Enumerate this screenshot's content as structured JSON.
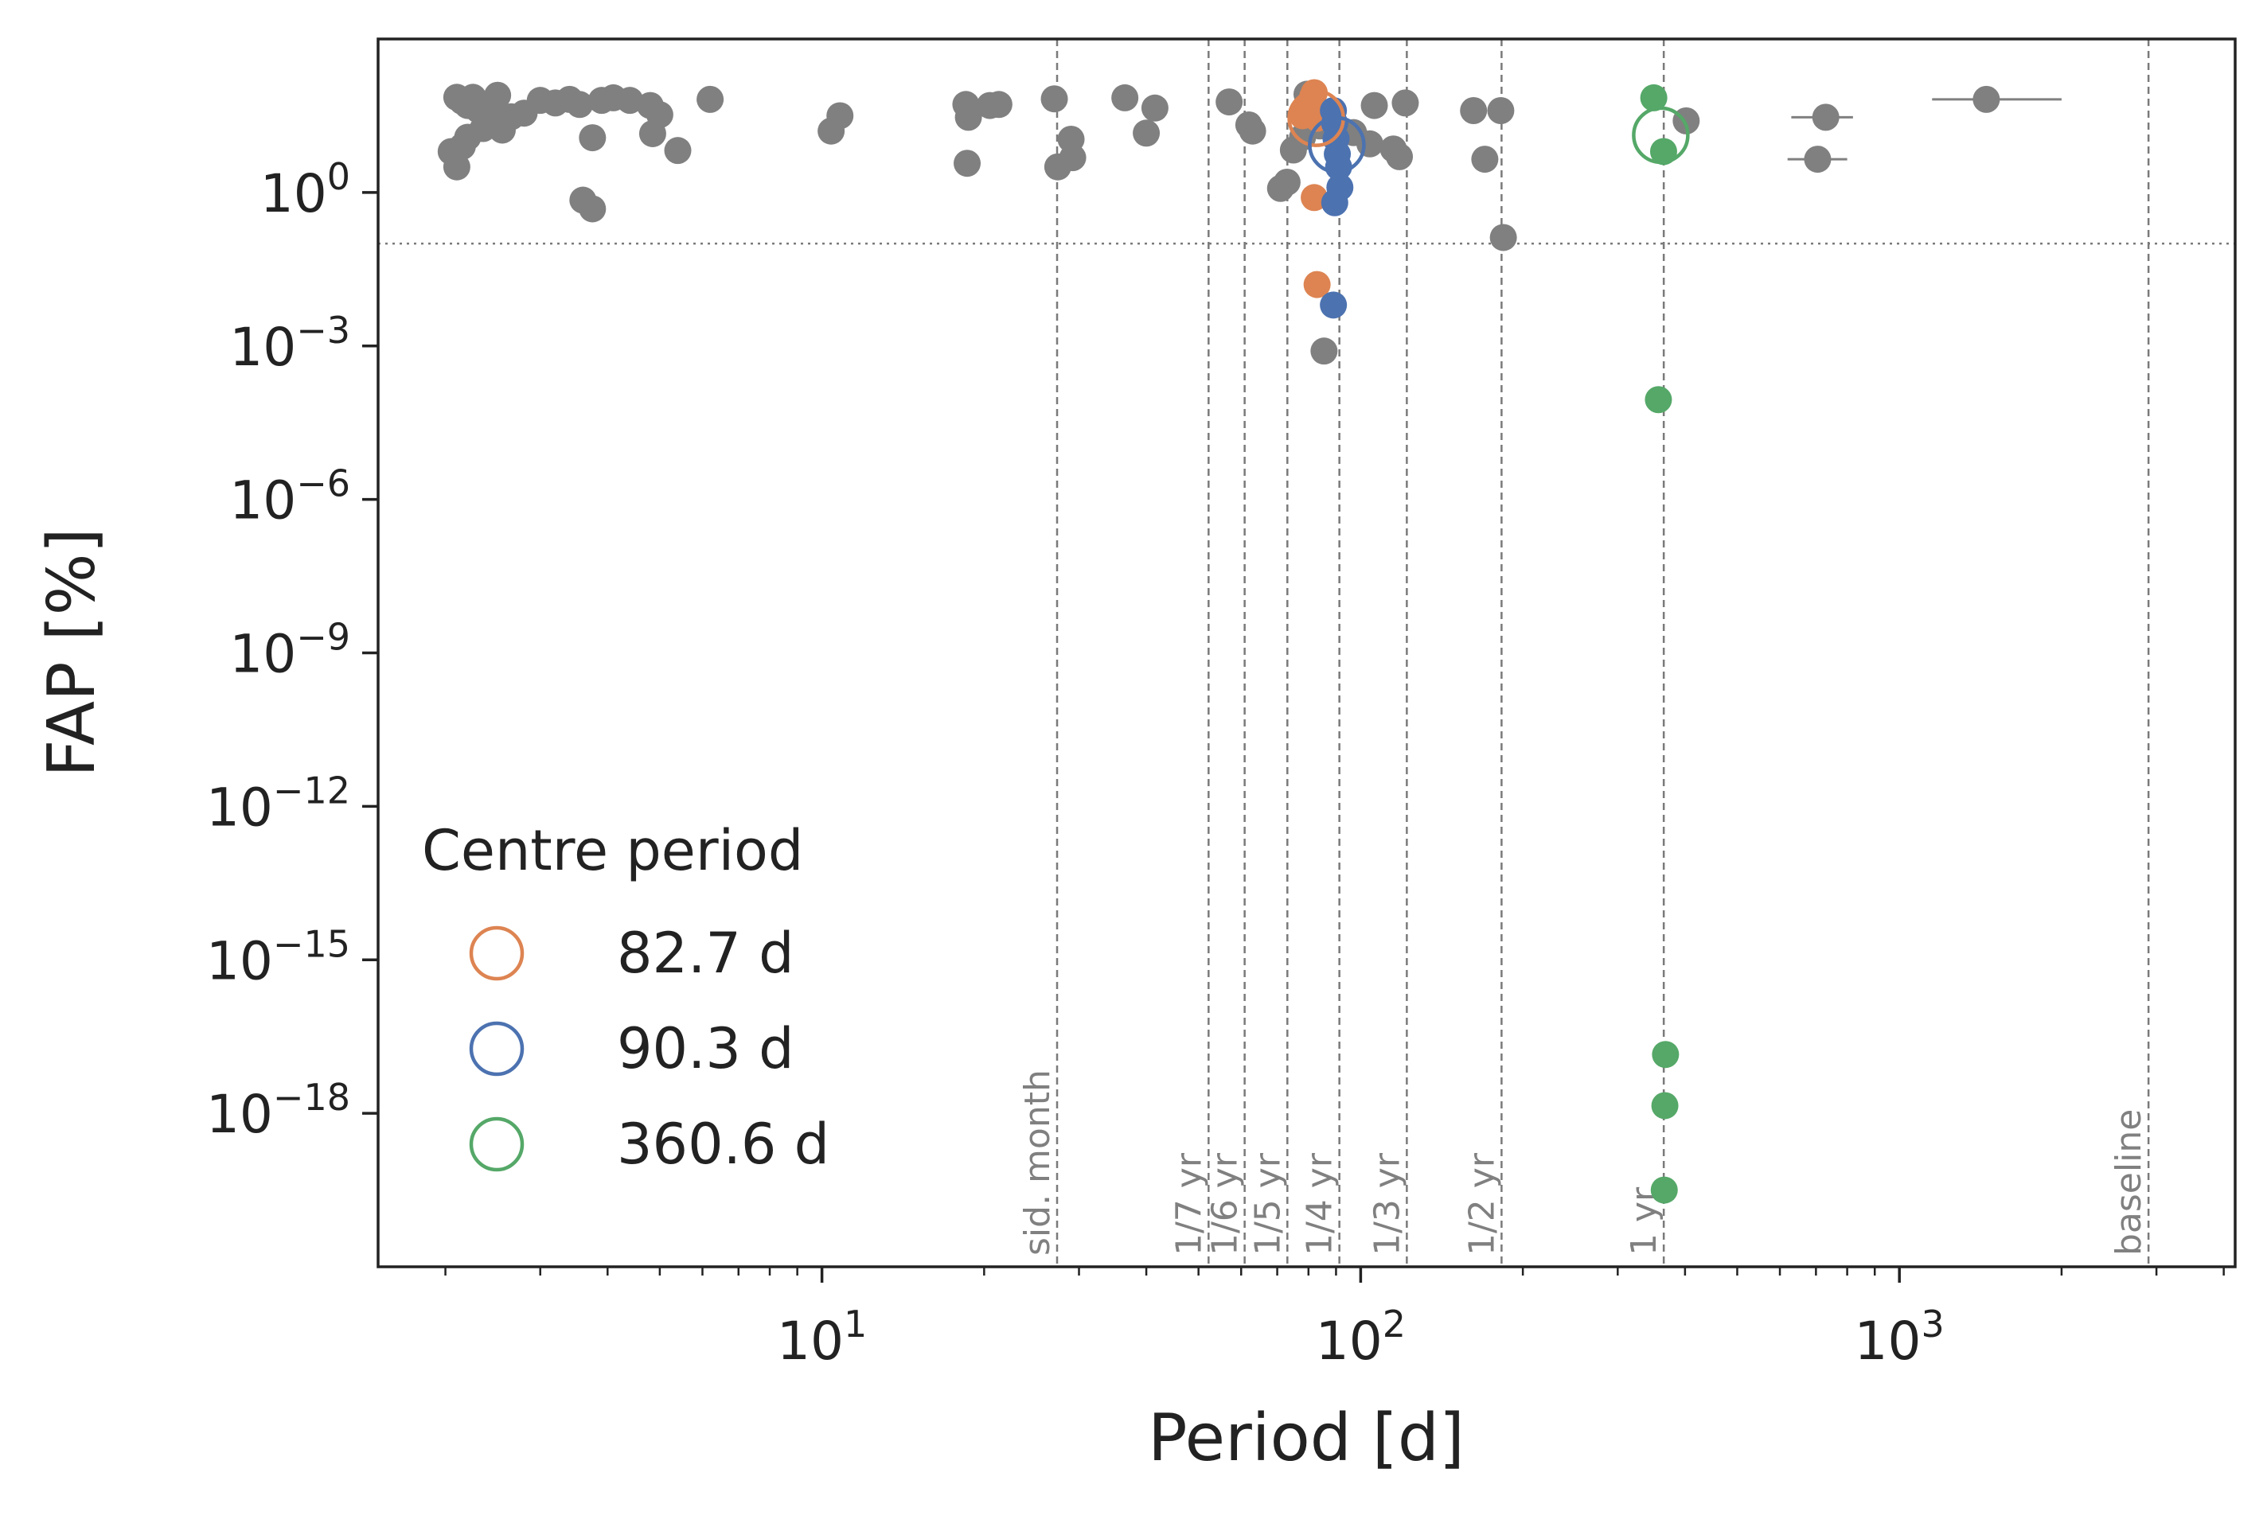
{
  "chart_data": {
    "type": "scatter",
    "xlabel": "Period [d]",
    "ylabel": "FAP [%]",
    "xscale": "log",
    "yscale": "log",
    "xlim": [
      1.5,
      4200
    ],
    "ylim_log10": [
      -21.0,
      3.0
    ],
    "grid": false,
    "x_ticks": [
      {
        "value": 10,
        "base": "10",
        "exp": "1"
      },
      {
        "value": 100,
        "base": "10",
        "exp": "2"
      },
      {
        "value": 1000,
        "base": "10",
        "exp": "3"
      }
    ],
    "y_ticks": [
      {
        "log10": 0,
        "base": "10",
        "exp": "0"
      },
      {
        "log10": -3,
        "base": "10",
        "exp": "−3"
      },
      {
        "log10": -6,
        "base": "10",
        "exp": "−6"
      },
      {
        "log10": -9,
        "base": "10",
        "exp": "−9"
      },
      {
        "log10": -12,
        "base": "10",
        "exp": "−12"
      },
      {
        "log10": -15,
        "base": "10",
        "exp": "−15"
      },
      {
        "log10": -18,
        "base": "10",
        "exp": "−18"
      }
    ],
    "threshold_log10": -1.0,
    "reference_lines": [
      {
        "label": "sid. month",
        "x": 27.32
      },
      {
        "label": "1/7 yr",
        "x": 52.2
      },
      {
        "label": "1/6 yr",
        "x": 60.9
      },
      {
        "label": "1/5 yr",
        "x": 73.1
      },
      {
        "label": "1/4 yr",
        "x": 91.3
      },
      {
        "label": "1/3 yr",
        "x": 121.8
      },
      {
        "label": "1/2 yr",
        "x": 182.6
      },
      {
        "label": "1 yr",
        "x": 365.25
      },
      {
        "label": "baseline",
        "x": 2900
      }
    ],
    "legend": {
      "title": "Centre period",
      "position": "lower-left",
      "entries": [
        {
          "label": "82.7 d",
          "color": "#dd8452"
        },
        {
          "label": "90.3 d",
          "color": "#4c72b0"
        },
        {
          "label": "360.6 d",
          "color": "#55a868"
        }
      ]
    },
    "centre_markers": [
      {
        "x": 82.7,
        "log10_fap": 1.45,
        "color": "#dd8452"
      },
      {
        "x": 90.3,
        "log10_fap": 0.93,
        "color": "#4c72b0"
      },
      {
        "x": 360.6,
        "log10_fap": 1.12,
        "color": "#55a868"
      }
    ],
    "colors": {
      "grey": "#808080",
      "orange": "#dd8452",
      "blue": "#4c72b0",
      "green": "#55a868"
    },
    "series": [
      {
        "color": "#808080",
        "points": [
          [
            2.1,
            1.86
          ],
          [
            2.15,
            1.78
          ],
          [
            2.2,
            1.7
          ],
          [
            2.25,
            1.86
          ],
          [
            2.05,
            0.8
          ],
          [
            2.1,
            0.5
          ],
          [
            2.15,
            0.9
          ],
          [
            2.2,
            1.08
          ],
          [
            2.3,
            1.62
          ],
          [
            2.35,
            1.25
          ],
          [
            2.45,
            1.58
          ],
          [
            2.5,
            1.9
          ],
          [
            2.55,
            1.22
          ],
          [
            2.65,
            1.48
          ],
          [
            2.8,
            1.55
          ],
          [
            3.0,
            1.8
          ],
          [
            3.2,
            1.75
          ],
          [
            3.4,
            1.82
          ],
          [
            3.55,
            1.72
          ],
          [
            3.75,
            1.07
          ],
          [
            3.9,
            1.8
          ],
          [
            4.1,
            1.85
          ],
          [
            4.4,
            1.8
          ],
          [
            4.8,
            1.7
          ],
          [
            4.85,
            1.15
          ],
          [
            5.0,
            1.52
          ],
          [
            5.4,
            0.82
          ],
          [
            6.2,
            1.82
          ],
          [
            3.6,
            -0.15
          ],
          [
            3.75,
            -0.32
          ],
          [
            10.4,
            1.2
          ],
          [
            10.8,
            1.5
          ],
          [
            18.5,
            1.72
          ],
          [
            18.7,
            1.47
          ],
          [
            18.6,
            0.57
          ],
          [
            20.5,
            1.7
          ],
          [
            21.3,
            1.72
          ],
          [
            27.0,
            1.83
          ],
          [
            27.4,
            0.5
          ],
          [
            29.0,
            1.04
          ],
          [
            29.2,
            0.68
          ],
          [
            36.5,
            1.85
          ],
          [
            40.0,
            1.16
          ],
          [
            41.5,
            1.65
          ],
          [
            57.0,
            1.77
          ],
          [
            62.0,
            1.32
          ],
          [
            63.0,
            1.2
          ],
          [
            71.0,
            0.08
          ],
          [
            73.0,
            0.2
          ],
          [
            75.0,
            0.83
          ],
          [
            78.0,
            1.08
          ],
          [
            79.5,
            1.92
          ],
          [
            84.0,
            1.3
          ],
          [
            85.5,
            -3.1
          ],
          [
            97.0,
            1.17
          ],
          [
            104.0,
            0.95
          ],
          [
            106.0,
            1.7
          ],
          [
            115.0,
            0.85
          ],
          [
            118.0,
            0.7
          ],
          [
            121.0,
            1.75
          ],
          [
            162.0,
            1.6
          ],
          [
            170.0,
            0.65
          ],
          [
            182.0,
            1.6
          ],
          [
            184.0,
            -0.88
          ],
          [
            402.0,
            1.4
          ],
          [
            730.0,
            1.47
          ],
          [
            705.0,
            0.65
          ],
          [
            1450.0,
            1.82
          ]
        ],
        "xerr": [
          {
            "x": 730.0,
            "lo": 630.0,
            "hi": 820.0
          },
          {
            "x": 705.0,
            "lo": 620.0,
            "hi": 800.0
          },
          {
            "x": 1450.0,
            "lo": 1150.0,
            "hi": 2000.0
          }
        ]
      },
      {
        "color": "#dd8452",
        "points": [
          [
            78.0,
            1.5
          ],
          [
            79.5,
            1.6
          ],
          [
            80.5,
            1.75
          ],
          [
            81.5,
            1.88
          ],
          [
            82.0,
            1.95
          ],
          [
            83.0,
            1.45
          ],
          [
            82.0,
            -0.1
          ],
          [
            83.0,
            -1.8
          ]
        ]
      },
      {
        "color": "#4c72b0",
        "points": [
          [
            89.0,
            1.6
          ],
          [
            89.5,
            1.35
          ],
          [
            90.0,
            1.05
          ],
          [
            90.5,
            0.75
          ],
          [
            91.0,
            0.5
          ],
          [
            91.5,
            0.1
          ],
          [
            89.5,
            -0.2
          ],
          [
            89.0,
            -2.2
          ]
        ]
      },
      {
        "color": "#55a868",
        "points": [
          [
            350.0,
            1.85
          ],
          [
            365.0,
            0.8
          ],
          [
            357.0,
            -4.05
          ],
          [
            368.0,
            -16.85
          ],
          [
            367.0,
            -17.85
          ],
          [
            366.0,
            -19.5
          ]
        ]
      }
    ]
  }
}
